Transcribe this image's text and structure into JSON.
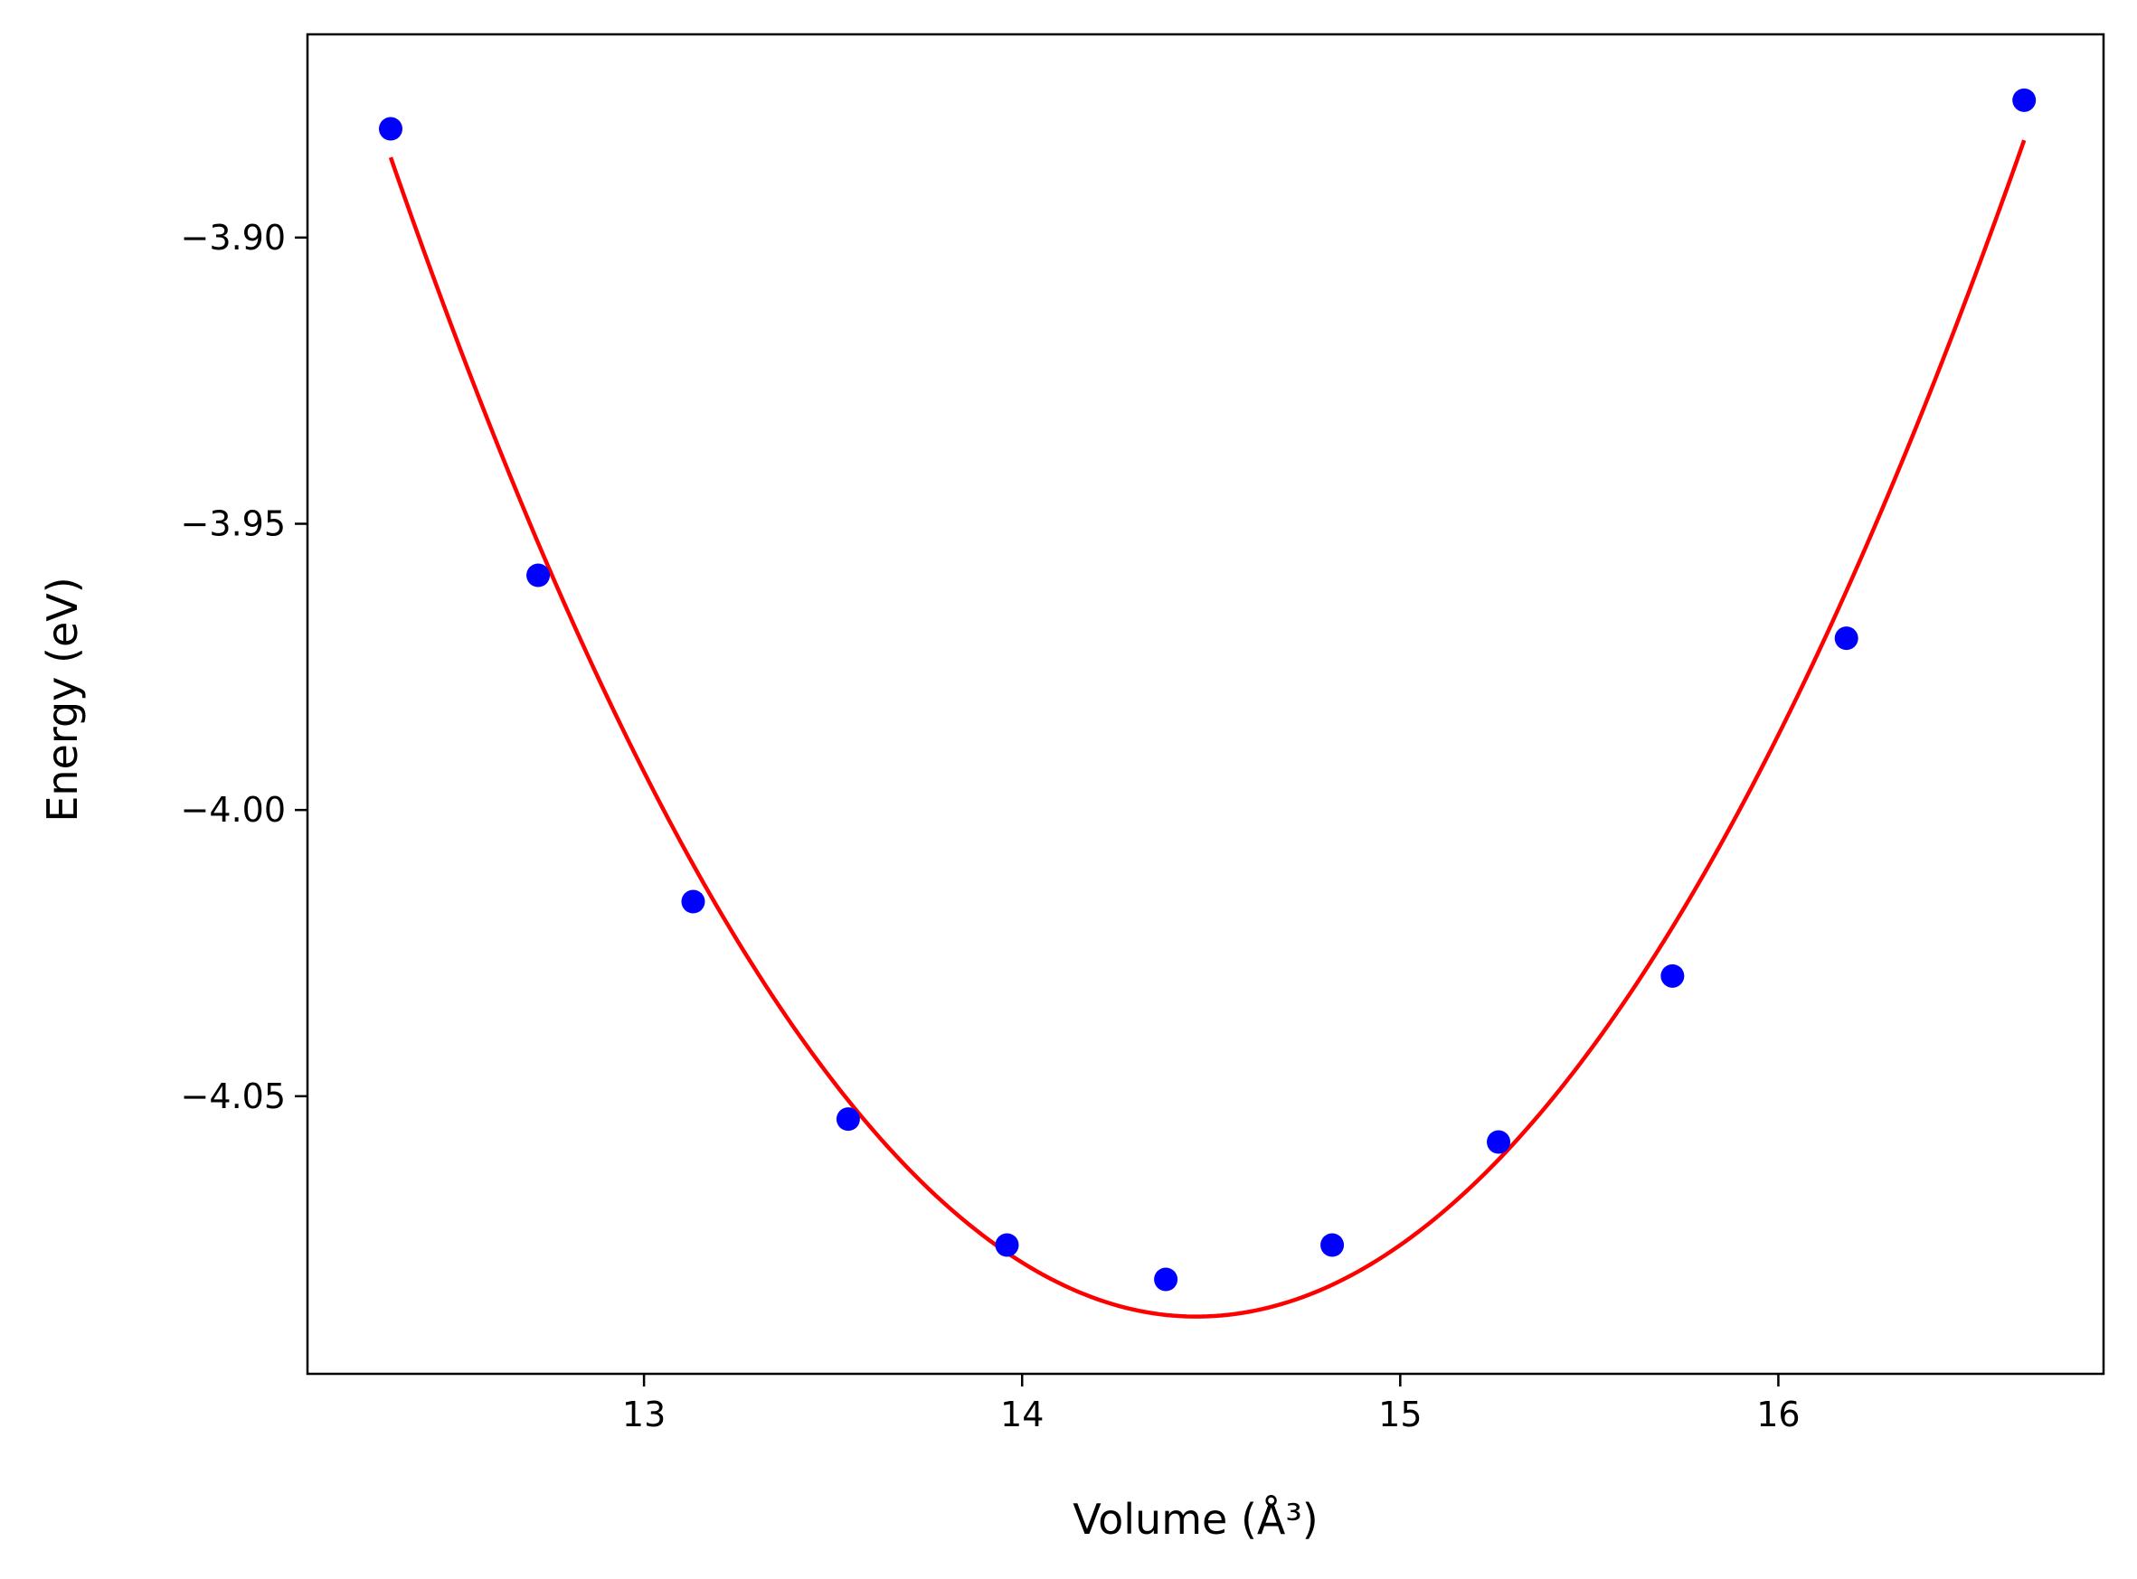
{
  "chart_data": {
    "type": "scatter",
    "title": "",
    "xlabel": "Volume (Å³)",
    "ylabel": "Energy (eV)",
    "xlim": [
      12.11,
      16.86
    ],
    "ylim": [
      -4.0985,
      -3.8645
    ],
    "grid": false,
    "xticks": [
      {
        "value": 13,
        "label": "13"
      },
      {
        "value": 14,
        "label": "14"
      },
      {
        "value": 15,
        "label": "15"
      },
      {
        "value": 16,
        "label": "16"
      }
    ],
    "yticks": [
      {
        "value": -3.9,
        "label": "−3.90"
      },
      {
        "value": -3.95,
        "label": "−3.95"
      },
      {
        "value": -4.0,
        "label": "−4.00"
      },
      {
        "value": -4.05,
        "label": "−4.05"
      }
    ],
    "series": [
      {
        "kind": "points",
        "color": "#0000ff",
        "x": [
          12.33,
          12.72,
          13.13,
          13.54,
          13.96,
          14.38,
          14.82,
          15.26,
          15.72,
          16.18,
          16.65
        ],
        "y": [
          -3.881,
          -3.959,
          -4.016,
          -4.054,
          -4.076,
          -4.082,
          -4.076,
          -4.058,
          -4.029,
          -3.97,
          -3.876
        ]
      },
      {
        "kind": "fit-curve",
        "color": "#ff0000",
        "x_min": 12.33,
        "x_max": 16.65,
        "vertex_x": 14.46,
        "vertex_y": -4.0885,
        "left_end_y": -3.886,
        "right_end_y": -3.883
      }
    ]
  }
}
